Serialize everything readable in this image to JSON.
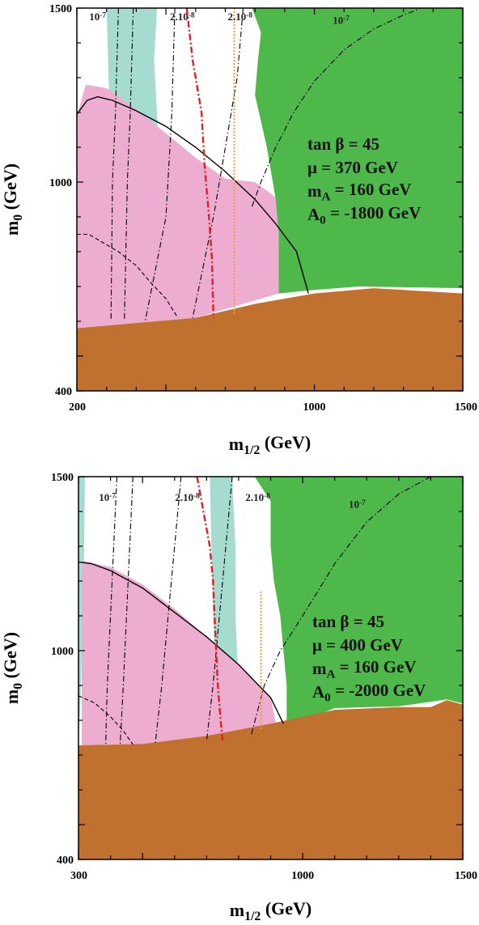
{
  "chart_data": [
    {
      "type": "area",
      "title": "",
      "xlabel": "m_{1/2} (GeV)",
      "ylabel": "m_0 (GeV)",
      "xlim": [
        200,
        1500
      ],
      "ylim": [
        400,
        1500
      ],
      "x_tick_labels": [
        "200",
        "1000",
        "1500"
      ],
      "y_tick_labels": [
        "400",
        "1000",
        "1500"
      ],
      "parameters": [
        "tan β = 45",
        "μ = 370 GeV",
        "m_A = 160 GeV",
        "A_0 = -1800 GeV"
      ],
      "contour_labels": [
        {
          "text": "10^-7",
          "x": 270,
          "y": 1465
        },
        {
          "text": "2.10^-8",
          "x": 555,
          "y": 1465
        },
        {
          "text": "2.10^-8",
          "x": 750,
          "y": 1465
        },
        {
          "text": "10^-7",
          "x": 1090,
          "y": 1455
        }
      ],
      "colors": {
        "brown": "#c0702f",
        "green": "#4fb84a",
        "pink": "#ecadd0",
        "teal": "#a6dbd0",
        "red": "#e02020",
        "orange": "#f0a030"
      },
      "regions": {
        "brown": [
          [
            200,
            580
          ],
          [
            400,
            595
          ],
          [
            600,
            610
          ],
          [
            800,
            650
          ],
          [
            1000,
            680
          ],
          [
            1200,
            695
          ],
          [
            1500,
            680
          ],
          [
            1500,
            400
          ],
          [
            200,
            400
          ]
        ],
        "green": [
          [
            790,
            1500
          ],
          [
            820,
            1430
          ],
          [
            810,
            1350
          ],
          [
            800,
            1250
          ],
          [
            840,
            1100
          ],
          [
            870,
            950
          ],
          [
            880,
            850
          ],
          [
            880,
            680
          ],
          [
            1000,
            690
          ],
          [
            1150,
            700
          ],
          [
            1500,
            695
          ],
          [
            1500,
            1500
          ]
        ],
        "pink": [
          [
            200,
            1190
          ],
          [
            230,
            1280
          ],
          [
            300,
            1270
          ],
          [
            400,
            1210
          ],
          [
            500,
            1140
          ],
          [
            600,
            1070
          ],
          [
            700,
            1010
          ],
          [
            800,
            1000
          ],
          [
            880,
            950
          ],
          [
            880,
            680
          ],
          [
            600,
            610
          ],
          [
            400,
            595
          ],
          [
            200,
            580
          ]
        ],
        "teal": [
          [
            300,
            1500
          ],
          [
            470,
            1500
          ],
          [
            460,
            1350
          ],
          [
            470,
            1200
          ],
          [
            480,
            1000
          ],
          [
            520,
            850
          ],
          [
            560,
            680
          ],
          [
            560,
            610
          ],
          [
            400,
            595
          ],
          [
            310,
            590
          ],
          [
            300,
            650
          ],
          [
            300,
            1000
          ],
          [
            310,
            1200
          ]
        ]
      },
      "lines": [
        {
          "name": "solid",
          "points": [
            [
              200,
              1195
            ],
            [
              235,
              1235
            ],
            [
              270,
              1245
            ],
            [
              320,
              1235
            ],
            [
              400,
              1205
            ],
            [
              500,
              1160
            ],
            [
              600,
              1100
            ],
            [
              700,
              1030
            ],
            [
              800,
              950
            ],
            [
              870,
              880
            ],
            [
              940,
              800
            ],
            [
              980,
              680
            ]
          ]
        },
        {
          "name": "lower dashed",
          "points": [
            [
              200,
              850
            ],
            [
              240,
              850
            ],
            [
              280,
              830
            ],
            [
              340,
              800
            ],
            [
              400,
              760
            ],
            [
              450,
              710
            ],
            [
              500,
              665
            ],
            [
              540,
              610
            ]
          ]
        },
        {
          "name": "dash-dot 1",
          "points": [
            [
              340,
              1500
            ],
            [
              330,
              1200
            ],
            [
              320,
              1000
            ],
            [
              315,
              600
            ]
          ]
        },
        {
          "name": "dash-dot 2",
          "points": [
            [
              390,
              1500
            ],
            [
              380,
              1200
            ],
            [
              370,
              1000
            ],
            [
              360,
              600
            ]
          ]
        },
        {
          "name": "dash-dot 3",
          "points": [
            [
              530,
              1500
            ],
            [
              520,
              1200
            ],
            [
              500,
              900
            ],
            [
              430,
              600
            ]
          ]
        },
        {
          "name": "dash-dot 4",
          "points": [
            [
              760,
              1500
            ],
            [
              740,
              1300
            ],
            [
              700,
              1100
            ],
            [
              660,
              900
            ],
            [
              590,
              610
            ]
          ]
        },
        {
          "name": "dash-dot 5",
          "points": [
            [
              790,
              930
            ],
            [
              820,
              1000
            ],
            [
              870,
              1100
            ],
            [
              930,
              1200
            ],
            [
              1000,
              1290
            ],
            [
              1100,
              1380
            ],
            [
              1200,
              1440
            ],
            [
              1300,
              1480
            ],
            [
              1360,
              1500
            ]
          ]
        },
        {
          "name": "red dash-dot",
          "points": [
            [
              570,
              1500
            ],
            [
              590,
              1350
            ],
            [
              620,
              1200
            ],
            [
              630,
              1050
            ],
            [
              645,
              900
            ],
            [
              655,
              780
            ],
            [
              660,
              610
            ]
          ]
        },
        {
          "name": "orange dotted",
          "points": [
            [
              730,
              1500
            ],
            [
              730,
              1200
            ],
            [
              730,
              900
            ],
            [
              730,
              620
            ]
          ]
        }
      ]
    },
    {
      "type": "area",
      "title": "",
      "xlabel": "m_{1/2} (GeV)",
      "ylabel": "m_0 (GeV)",
      "xlim": [
        300,
        1500
      ],
      "ylim": [
        400,
        1500
      ],
      "x_tick_labels": [
        "300",
        "1000",
        "1500"
      ],
      "y_tick_labels": [
        "400",
        "1000",
        "1500"
      ],
      "parameters": [
        "tan β = 45",
        "μ = 400 GeV",
        "m_A = 160 GeV",
        "A_0 = -2000 GeV"
      ],
      "contour_labels": [
        {
          "text": "10^-7",
          "x": 390,
          "y": 1430
        },
        {
          "text": "2.10^-8",
          "x": 640,
          "y": 1430
        },
        {
          "text": "2.10^-8",
          "x": 860,
          "y": 1430
        },
        {
          "text": "10^-7",
          "x": 1170,
          "y": 1410
        }
      ],
      "colors": {
        "brown": "#c0702f",
        "green": "#4fb84a",
        "pink": "#ecadd0",
        "teal": "#a6dbd0",
        "red": "#e02020",
        "orange": "#f0a030"
      },
      "regions": {
        "brown": [
          [
            300,
            728
          ],
          [
            500,
            732
          ],
          [
            700,
            755
          ],
          [
            900,
            790
          ],
          [
            1100,
            830
          ],
          [
            1300,
            838
          ],
          [
            1400,
            838
          ],
          [
            1450,
            858
          ],
          [
            1500,
            845
          ],
          [
            1500,
            400
          ],
          [
            300,
            400
          ]
        ],
        "green": [
          [
            850,
            1500
          ],
          [
            900,
            1430
          ],
          [
            900,
            1300
          ],
          [
            910,
            1200
          ],
          [
            930,
            1100
          ],
          [
            940,
            1000
          ],
          [
            950,
            900
          ],
          [
            950,
            780
          ],
          [
            1100,
            835
          ],
          [
            1300,
            840
          ],
          [
            1450,
            860
          ],
          [
            1500,
            848
          ],
          [
            1500,
            1500
          ]
        ],
        "pink": [
          [
            310,
            1260
          ],
          [
            400,
            1240
          ],
          [
            500,
            1190
          ],
          [
            600,
            1120
          ],
          [
            700,
            1040
          ],
          [
            800,
            960
          ],
          [
            900,
            865
          ],
          [
            920,
            775
          ],
          [
            700,
            755
          ],
          [
            500,
            732
          ],
          [
            310,
            728
          ]
        ],
        "teal_left": [
          [
            300,
            1500
          ],
          [
            320,
            1500
          ],
          [
            318,
            1300
          ],
          [
            312,
            1100
          ],
          [
            308,
            900
          ],
          [
            300,
            730
          ]
        ],
        "teal_mid": [
          [
            710,
            1500
          ],
          [
            780,
            1500
          ],
          [
            790,
            1300
          ],
          [
            790,
            1100
          ],
          [
            800,
            900
          ],
          [
            790,
            760
          ],
          [
            700,
            760
          ],
          [
            730,
            900
          ],
          [
            720,
            1100
          ],
          [
            715,
            1300
          ]
        ],
        "teal_bottom": [
          [
            650,
            750
          ],
          [
            700,
            760
          ],
          [
            790,
            760
          ],
          [
            800,
            775
          ],
          [
            700,
            770
          ]
        ]
      },
      "lines": [
        {
          "name": "solid",
          "points": [
            [
              300,
              1255
            ],
            [
              340,
              1250
            ],
            [
              400,
              1230
            ],
            [
              500,
              1180
            ],
            [
              600,
              1110
            ],
            [
              700,
              1040
            ],
            [
              800,
              960
            ],
            [
              900,
              865
            ],
            [
              940,
              790
            ]
          ]
        },
        {
          "name": "lower dashed",
          "points": [
            [
              300,
              870
            ],
            [
              350,
              850
            ],
            [
              400,
              810
            ],
            [
              440,
              770
            ],
            [
              470,
              730
            ]
          ]
        },
        {
          "name": "dash-dot 1",
          "points": [
            [
              420,
              1500
            ],
            [
              410,
              1300
            ],
            [
              400,
              1100
            ],
            [
              390,
              900
            ],
            [
              385,
              730
            ]
          ]
        },
        {
          "name": "dash-dot 2",
          "points": [
            [
              470,
              1500
            ],
            [
              460,
              1300
            ],
            [
              450,
              1100
            ],
            [
              440,
              900
            ],
            [
              430,
              730
            ]
          ]
        },
        {
          "name": "dash-dot 3",
          "points": [
            [
              620,
              1500
            ],
            [
              600,
              1300
            ],
            [
              580,
              1100
            ],
            [
              560,
              900
            ],
            [
              540,
              735
            ]
          ]
        },
        {
          "name": "dash-dot 4",
          "points": [
            [
              780,
              1500
            ],
            [
              760,
              1300
            ],
            [
              740,
              1100
            ],
            [
              720,
              900
            ],
            [
              700,
              740
            ]
          ]
        },
        {
          "name": "dash-dot 5",
          "points": [
            [
              840,
              760
            ],
            [
              880,
              900
            ],
            [
              930,
              1000
            ],
            [
              1000,
              1100
            ],
            [
              1100,
              1250
            ],
            [
              1200,
              1370
            ],
            [
              1300,
              1450
            ],
            [
              1400,
              1500
            ]
          ]
        },
        {
          "name": "red dash-dot",
          "points": [
            [
              670,
              1500
            ],
            [
              690,
              1400
            ],
            [
              710,
              1300
            ],
            [
              720,
              1200
            ],
            [
              725,
              1100
            ],
            [
              730,
              1000
            ],
            [
              735,
              900
            ],
            [
              745,
              790
            ],
            [
              750,
              740
            ]
          ]
        },
        {
          "name": "orange dotted",
          "points": [
            [
              870,
              1170
            ],
            [
              870,
              1000
            ],
            [
              870,
              850
            ],
            [
              870,
              770
            ]
          ]
        }
      ]
    }
  ]
}
